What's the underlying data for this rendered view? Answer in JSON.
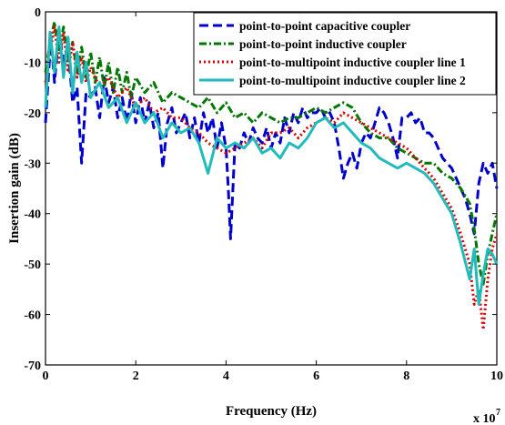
{
  "chart_data": {
    "type": "line",
    "title": "",
    "xlabel": "Frequency (Hz)",
    "ylabel": "Insertion gain (dB)",
    "x_multiplier_label": "x 10",
    "x_multiplier_exponent": "7",
    "xlim": [
      0,
      10
    ],
    "ylim": [
      -70,
      0
    ],
    "x_ticks": [
      0,
      2,
      4,
      6,
      8,
      10
    ],
    "y_ticks": [
      -70,
      -60,
      -50,
      -40,
      -30,
      -20,
      -10,
      0
    ],
    "grid": false,
    "legend_position": "top-right",
    "series": [
      {
        "name": "point-to-point capacitive coupler",
        "color": "#0000cc",
        "style": "dashed",
        "x": [
          0,
          0.12,
          0.2,
          0.3,
          0.4,
          0.5,
          0.6,
          0.7,
          0.8,
          0.9,
          1.0,
          1.1,
          1.2,
          1.3,
          1.4,
          1.5,
          1.6,
          1.7,
          1.8,
          1.9,
          2.0,
          2.1,
          2.2,
          2.3,
          2.4,
          2.5,
          2.6,
          2.7,
          2.8,
          2.9,
          3.0,
          3.1,
          3.2,
          3.3,
          3.4,
          3.5,
          3.6,
          3.7,
          3.8,
          3.9,
          4.0,
          4.05,
          4.1,
          4.2,
          4.3,
          4.4,
          4.5,
          4.6,
          4.7,
          4.8,
          4.9,
          5.0,
          5.1,
          5.2,
          5.3,
          5.4,
          5.5,
          5.6,
          5.7,
          5.8,
          5.9,
          6.0,
          6.1,
          6.2,
          6.3,
          6.4,
          6.5,
          6.6,
          6.7,
          6.8,
          6.9,
          7.0,
          7.1,
          7.2,
          7.3,
          7.4,
          7.5,
          7.6,
          7.7,
          7.8,
          7.9,
          8.0,
          8.1,
          8.2,
          8.3,
          8.4,
          8.5,
          8.6,
          8.7,
          8.8,
          8.9,
          9.0,
          9.1,
          9.2,
          9.3,
          9.4,
          9.5,
          9.6,
          9.7,
          9.8,
          9.9,
          10.0
        ],
        "y": [
          -22,
          -5,
          -14,
          -4,
          -10,
          -7,
          -18,
          -15,
          -30,
          -16,
          -17,
          -15,
          -21,
          -13,
          -18,
          -15,
          -21,
          -17,
          -22,
          -16,
          -22,
          -17,
          -22,
          -18,
          -23,
          -20,
          -31,
          -22,
          -19,
          -24,
          -22,
          -20,
          -25,
          -21,
          -26,
          -20,
          -24,
          -21,
          -27,
          -22,
          -27,
          -35,
          -45,
          -26,
          -27,
          -24,
          -26,
          -23,
          -25,
          -26,
          -23,
          -27,
          -24,
          -26,
          -21,
          -24,
          -20,
          -22,
          -19,
          -21,
          -20,
          -20,
          -19,
          -21,
          -20,
          -22,
          -27,
          -33,
          -30,
          -28,
          -31,
          -26,
          -24,
          -25,
          -22,
          -19,
          -20,
          -22,
          -25,
          -29,
          -21,
          -21,
          -20,
          -22,
          -21,
          -24,
          -24,
          -25,
          -27,
          -29,
          -30,
          -31,
          -33,
          -35,
          -37,
          -40,
          -44,
          -34,
          -30,
          -32,
          -30,
          -35
        ]
      },
      {
        "name": "point-to-point inductive coupler",
        "color": "#007700",
        "style": "dash-dot",
        "x": [
          0,
          0.1,
          0.2,
          0.3,
          0.4,
          0.5,
          0.6,
          0.7,
          0.8,
          0.9,
          1.0,
          1.1,
          1.2,
          1.3,
          1.4,
          1.5,
          1.6,
          1.7,
          1.8,
          1.9,
          2.0,
          2.2,
          2.4,
          2.6,
          2.8,
          3.0,
          3.2,
          3.4,
          3.6,
          3.8,
          4.0,
          4.2,
          4.4,
          4.6,
          4.8,
          5.0,
          5.2,
          5.4,
          5.6,
          5.8,
          6.0,
          6.2,
          6.4,
          6.6,
          6.8,
          7.0,
          7.2,
          7.4,
          7.6,
          7.8,
          8.0,
          8.2,
          8.4,
          8.6,
          8.8,
          9.0,
          9.2,
          9.4,
          9.5,
          9.6,
          9.7,
          9.8,
          9.9,
          10.0
        ],
        "y": [
          -12,
          -6,
          -2,
          -8,
          -3,
          -10,
          -6,
          -12,
          -7,
          -13,
          -8,
          -14,
          -9,
          -15,
          -10,
          -16,
          -11,
          -16,
          -12,
          -17,
          -13,
          -16,
          -14,
          -18,
          -16,
          -17,
          -18,
          -19,
          -17,
          -20,
          -18,
          -21,
          -20,
          -22,
          -20,
          -21,
          -22,
          -21,
          -21,
          -20,
          -19,
          -20,
          -19,
          -18,
          -19,
          -22,
          -24,
          -25,
          -25,
          -27,
          -28,
          -29,
          -30,
          -30,
          -32,
          -33,
          -35,
          -38,
          -43,
          -50,
          -54,
          -48,
          -44,
          -40
        ]
      },
      {
        "name": "point-to-multipoint inductive coupler line 1",
        "color": "#dd0000",
        "style": "dotted",
        "x": [
          0,
          0.1,
          0.2,
          0.3,
          0.4,
          0.5,
          0.6,
          0.7,
          0.8,
          0.9,
          1.0,
          1.2,
          1.4,
          1.6,
          1.8,
          2.0,
          2.2,
          2.4,
          2.6,
          2.8,
          3.0,
          3.2,
          3.4,
          3.6,
          3.8,
          4.0,
          4.2,
          4.4,
          4.6,
          4.8,
          5.0,
          5.2,
          5.4,
          5.6,
          5.8,
          6.0,
          6.2,
          6.4,
          6.6,
          6.8,
          7.0,
          7.2,
          7.4,
          7.6,
          7.8,
          8.0,
          8.2,
          8.4,
          8.6,
          8.8,
          9.0,
          9.2,
          9.4,
          9.5,
          9.6,
          9.7,
          9.8,
          9.9,
          10.0
        ],
        "y": [
          -14,
          -8,
          -3,
          -10,
          -4,
          -12,
          -6,
          -13,
          -9,
          -14,
          -11,
          -15,
          -13,
          -17,
          -15,
          -19,
          -17,
          -20,
          -19,
          -21,
          -21,
          -23,
          -24,
          -26,
          -27,
          -28,
          -27,
          -26,
          -25,
          -27,
          -24,
          -24,
          -23,
          -25,
          -23,
          -22,
          -21,
          -22,
          -20,
          -21,
          -22,
          -23,
          -24,
          -25,
          -26,
          -27,
          -29,
          -31,
          -33,
          -36,
          -39,
          -44,
          -50,
          -58,
          -55,
          -63,
          -53,
          -47,
          -44
        ]
      },
      {
        "name": "point-to-multipoint inductive coupler line 2",
        "color": "#22bbbb",
        "style": "solid",
        "x": [
          0,
          0.1,
          0.2,
          0.3,
          0.4,
          0.5,
          0.6,
          0.7,
          0.8,
          0.9,
          1.0,
          1.2,
          1.4,
          1.6,
          1.8,
          2.0,
          2.2,
          2.4,
          2.6,
          2.8,
          3.0,
          3.2,
          3.4,
          3.6,
          3.8,
          4.0,
          4.2,
          4.4,
          4.6,
          4.8,
          5.0,
          5.2,
          5.4,
          5.6,
          5.8,
          6.0,
          6.2,
          6.4,
          6.6,
          6.8,
          7.0,
          7.2,
          7.4,
          7.6,
          7.8,
          8.0,
          8.2,
          8.4,
          8.6,
          8.8,
          9.0,
          9.2,
          9.4,
          9.5,
          9.6,
          9.7,
          9.8,
          9.9,
          10.0
        ],
        "y": [
          -19,
          -4,
          -12,
          -3,
          -13,
          -5,
          -16,
          -8,
          -14,
          -10,
          -17,
          -14,
          -19,
          -17,
          -22,
          -18,
          -22,
          -20,
          -25,
          -22,
          -24,
          -23,
          -26,
          -32,
          -25,
          -27,
          -26,
          -27,
          -25,
          -28,
          -27,
          -29,
          -26,
          -27,
          -25,
          -22,
          -21,
          -23,
          -22,
          -24,
          -26,
          -27,
          -29,
          -30,
          -31,
          -30,
          -31,
          -32,
          -34,
          -37,
          -40,
          -46,
          -53,
          -47,
          -58,
          -52,
          -47,
          -48,
          -50
        ]
      }
    ]
  }
}
